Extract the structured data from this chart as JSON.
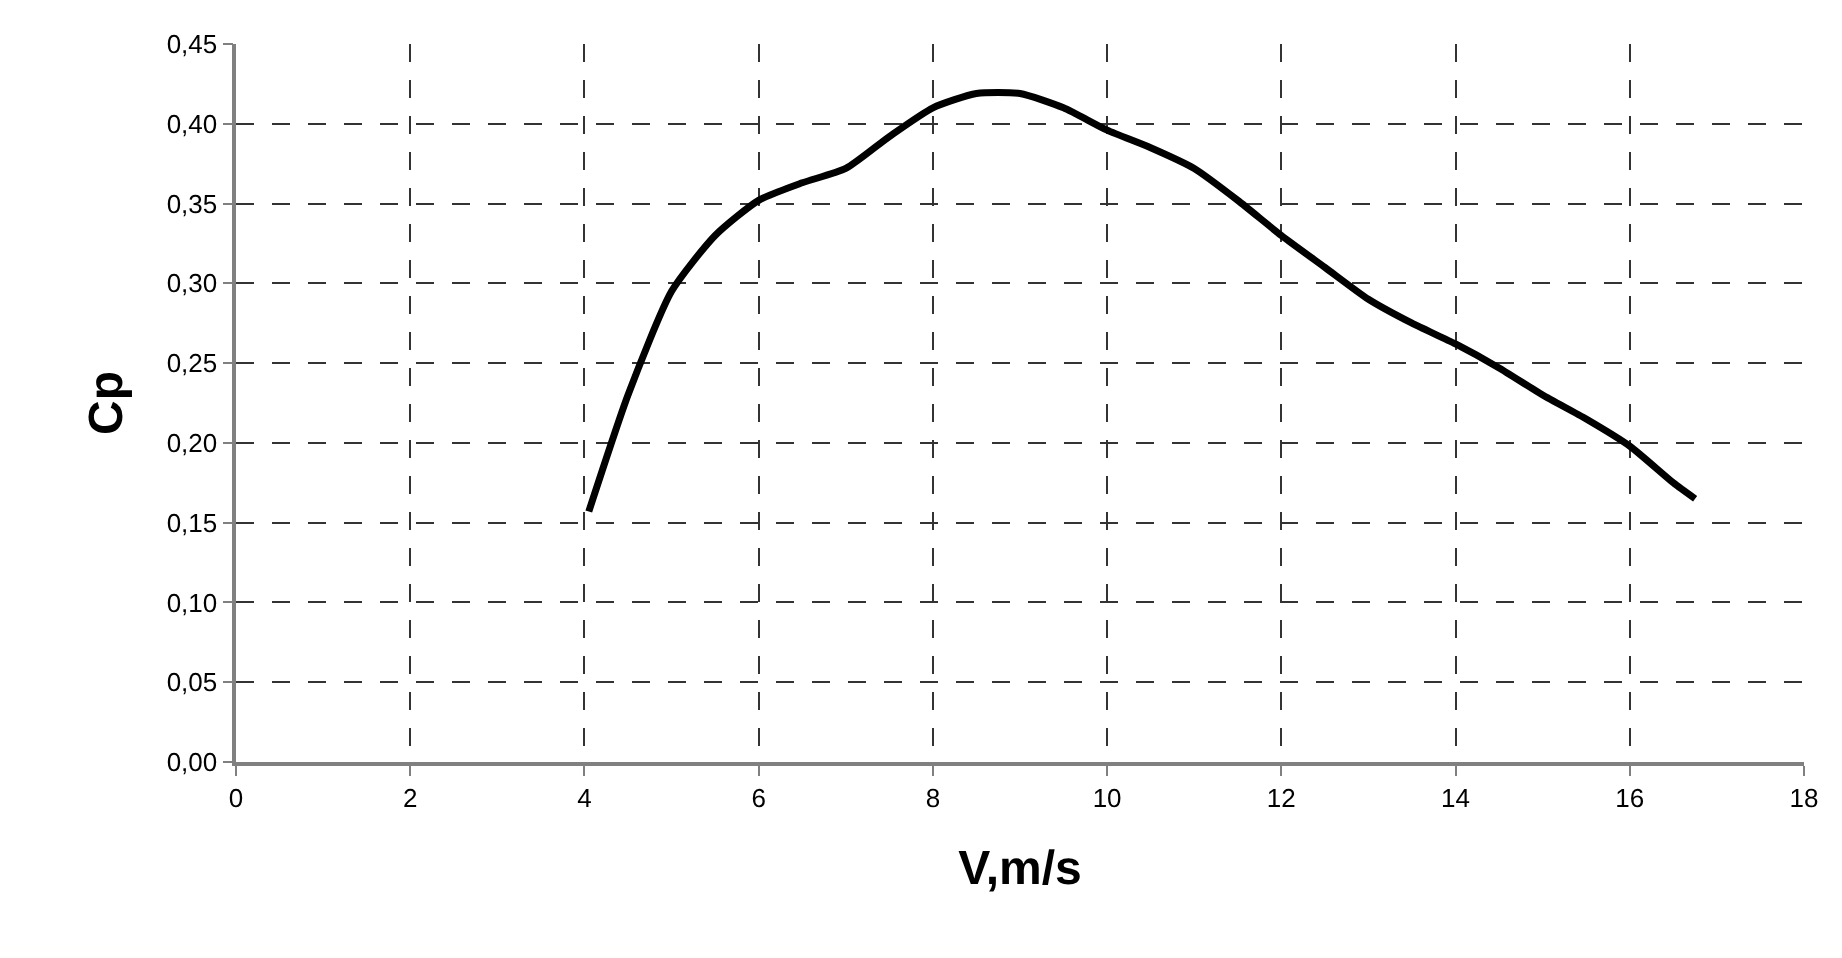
{
  "chart_data": {
    "type": "line",
    "xlabel": "V,m/s",
    "ylabel": "Cp",
    "x": [
      4.05,
      4.5,
      5,
      5.5,
      6,
      6.5,
      7,
      7.5,
      8,
      8.5,
      9,
      9.5,
      10,
      10.5,
      11,
      11.5,
      12,
      12.5,
      13,
      13.5,
      14,
      14.5,
      15,
      15.5,
      16,
      16.5,
      16.75
    ],
    "series": [
      {
        "color": "#000000",
        "values": [
          0.157,
          0.23,
          0.295,
          0.33,
          0.352,
          0.363,
          0.372,
          0.392,
          0.41,
          0.419,
          0.419,
          0.41,
          0.396,
          0.385,
          0.372,
          0.352,
          0.33,
          0.31,
          0.29,
          0.275,
          0.262,
          0.247,
          0.23,
          0.215,
          0.198,
          0.175,
          0.165
        ]
      }
    ],
    "xlim": [
      0,
      18
    ],
    "xticks": [
      0,
      2,
      4,
      6,
      8,
      10,
      12,
      14,
      16,
      18
    ],
    "ylim": [
      0,
      0.45
    ],
    "yticks": [
      {
        "value": 0,
        "label": "0,00"
      },
      {
        "value": 0.05,
        "label": "0,05"
      },
      {
        "value": 0.1,
        "label": "0,10"
      },
      {
        "value": 0.15,
        "label": "0,15"
      },
      {
        "value": 0.2,
        "label": "0,20"
      },
      {
        "value": 0.25,
        "label": "0,25"
      },
      {
        "value": 0.3,
        "label": "0,30"
      },
      {
        "value": 0.35,
        "label": "0,35"
      },
      {
        "value": 0.4,
        "label": "0,40"
      },
      {
        "value": 0.45,
        "label": "0,45"
      }
    ],
    "grid": true,
    "marker": "none",
    "line_style": "solid"
  }
}
